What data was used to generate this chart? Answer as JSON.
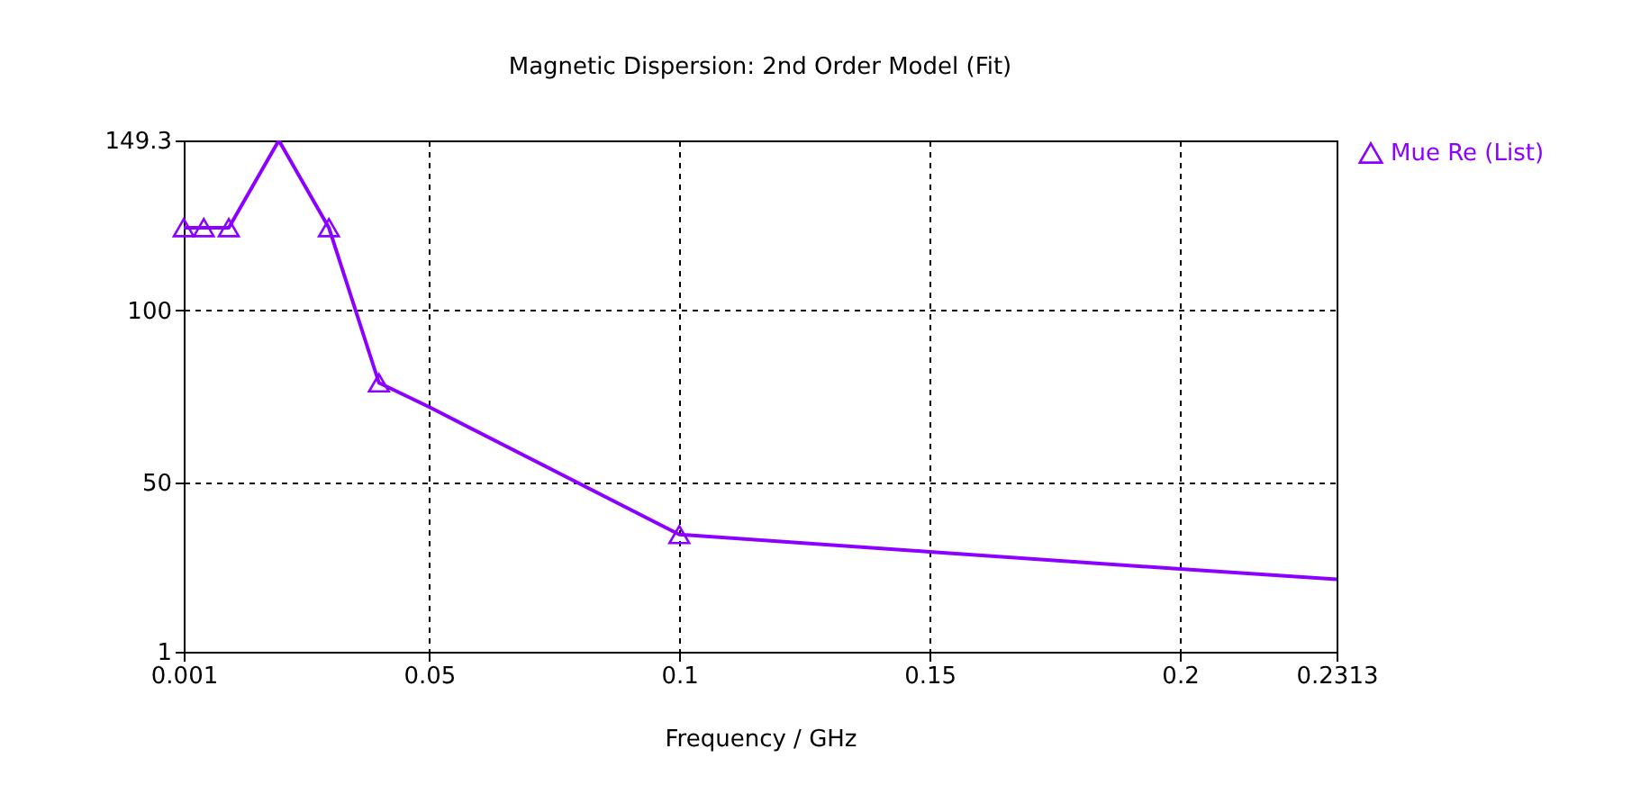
{
  "chart_data": {
    "type": "line",
    "title": "Magnetic Dispersion: 2nd Order Model (Fit)",
    "xlabel": "Frequency / GHz",
    "xlim": [
      0.001,
      0.2313
    ],
    "xticks": [
      0.001,
      0.05,
      0.1,
      0.15,
      0.2,
      0.2313
    ],
    "ylim": [
      1,
      149.3
    ],
    "yticks": [
      1,
      50,
      100,
      149.3
    ],
    "grid": true,
    "legend": "top right",
    "line_style": "solid",
    "series": [
      {
        "type": "line",
        "color": "#8b00ff",
        "x": [
          0.001,
          0.005,
          0.01,
          0.02,
          0.03,
          0.04,
          0.05,
          0.1,
          0.15,
          0.2,
          0.2313
        ],
        "values": [
          124,
          124,
          124,
          149.3,
          124,
          79,
          72,
          35,
          30,
          25,
          22
        ]
      },
      {
        "type": "scatter",
        "name": "Mue Re (List)",
        "color": "#8b00ff",
        "marker": "triangle",
        "x": [
          0.001,
          0.005,
          0.01,
          0.03,
          0.04,
          0.1
        ],
        "values": [
          124,
          124,
          124,
          124,
          79,
          35
        ]
      }
    ]
  }
}
